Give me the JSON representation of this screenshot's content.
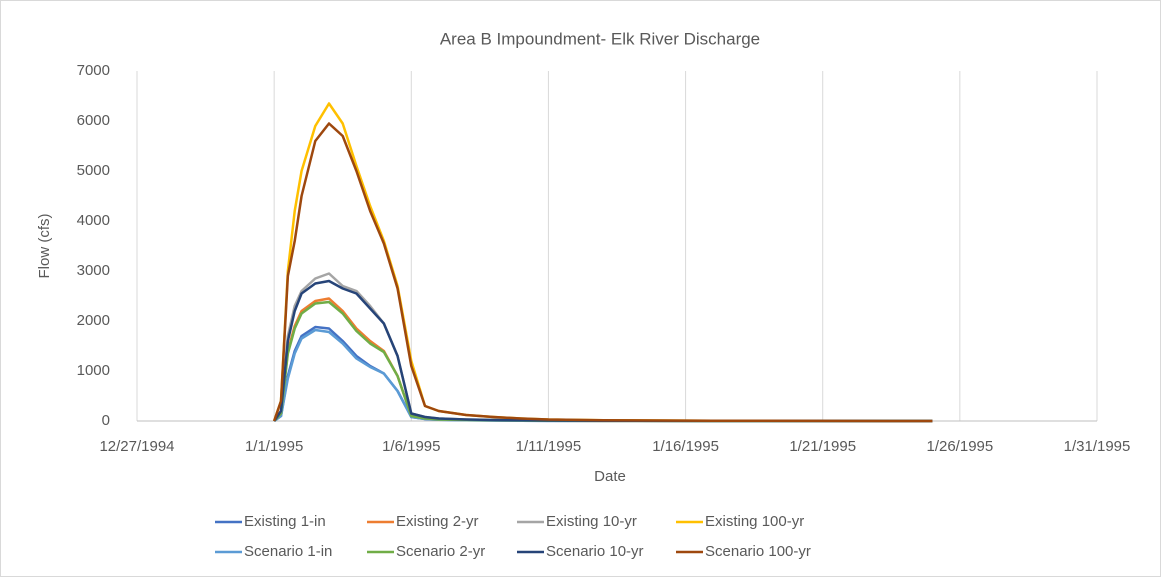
{
  "chart_data": {
    "type": "line",
    "title": "Area B Impoundment- Elk River Discharge",
    "x_label": "Date",
    "y_label": "Flow (cfs)",
    "x": [
      "1995-01-01T00:00",
      "1995-01-01T06:00",
      "1995-01-01T12:00",
      "1995-01-01T18:00",
      "1995-01-02T00:00",
      "1995-01-02T12:00",
      "1995-01-03T00:00",
      "1995-01-03T12:00",
      "1995-01-04T00:00",
      "1995-01-04T12:00",
      "1995-01-05T00:00",
      "1995-01-05T12:00",
      "1995-01-06T00:00",
      "1995-01-06T12:00",
      "1995-01-07T00:00",
      "1995-01-08T00:00",
      "1995-01-09T00:00",
      "1995-01-10T00:00",
      "1995-01-11T00:00",
      "1995-01-13T00:00",
      "1995-01-17T00:00",
      "1995-01-25T00:00"
    ],
    "series": [
      {
        "name": "Existing 1-in",
        "color": "#4472c4",
        "values": [
          0,
          100,
          900,
          1400,
          1700,
          1880,
          1850,
          1600,
          1300,
          1100,
          950,
          600,
          80,
          40,
          25,
          15,
          10,
          5,
          3,
          2,
          1,
          0
        ]
      },
      {
        "name": "Existing 2-yr",
        "color": "#ed7d31",
        "values": [
          0,
          150,
          1400,
          1900,
          2200,
          2400,
          2450,
          2200,
          1850,
          1600,
          1400,
          900,
          100,
          50,
          30,
          20,
          15,
          10,
          5,
          3,
          1,
          0
        ]
      },
      {
        "name": "Existing 10-yr",
        "color": "#a5a5a5",
        "values": [
          0,
          200,
          1700,
          2300,
          2600,
          2850,
          2950,
          2700,
          2600,
          2300,
          1950,
          1300,
          150,
          80,
          50,
          30,
          20,
          15,
          10,
          5,
          2,
          0
        ]
      },
      {
        "name": "Existing 100-yr",
        "color": "#ffc000",
        "values": [
          0,
          400,
          3000,
          4200,
          5000,
          5900,
          6350,
          5950,
          5100,
          4300,
          3600,
          2700,
          1200,
          300,
          200,
          120,
          80,
          50,
          30,
          15,
          5,
          0
        ]
      },
      {
        "name": "Scenario 1-in",
        "color": "#5b9bd5",
        "values": [
          0,
          100,
          850,
          1350,
          1650,
          1820,
          1780,
          1550,
          1250,
          1080,
          950,
          600,
          80,
          40,
          25,
          15,
          10,
          5,
          3,
          2,
          1,
          0
        ]
      },
      {
        "name": "Scenario 2-yr",
        "color": "#70ad47",
        "values": [
          0,
          150,
          1350,
          1850,
          2150,
          2350,
          2380,
          2150,
          1800,
          1550,
          1380,
          900,
          100,
          50,
          30,
          20,
          15,
          10,
          5,
          3,
          1,
          0
        ]
      },
      {
        "name": "Scenario 10-yr",
        "color": "#264478",
        "values": [
          0,
          200,
          1600,
          2200,
          2550,
          2750,
          2800,
          2650,
          2550,
          2250,
          1950,
          1300,
          150,
          80,
          50,
          30,
          20,
          15,
          10,
          5,
          2,
          0
        ]
      },
      {
        "name": "Scenario 100-yr",
        "color": "#9e480e",
        "values": [
          0,
          400,
          2900,
          3600,
          4500,
          5600,
          5950,
          5700,
          5000,
          4200,
          3550,
          2650,
          1100,
          300,
          200,
          120,
          80,
          50,
          30,
          15,
          5,
          0
        ]
      }
    ],
    "xlim": [
      "1994-12-27T00:00",
      "1995-01-31T00:00"
    ],
    "xticks": [
      {
        "value": "1994-12-27T00:00",
        "label": "12/27/1994"
      },
      {
        "value": "1995-01-01T00:00",
        "label": "1/1/1995"
      },
      {
        "value": "1995-01-06T00:00",
        "label": "1/6/1995"
      },
      {
        "value": "1995-01-11T00:00",
        "label": "1/11/1995"
      },
      {
        "value": "1995-01-16T00:00",
        "label": "1/16/1995"
      },
      {
        "value": "1995-01-21T00:00",
        "label": "1/21/1995"
      },
      {
        "value": "1995-01-26T00:00",
        "label": "1/26/1995"
      },
      {
        "value": "1995-01-31T00:00",
        "label": "1/31/1995"
      }
    ],
    "ylim": [
      0,
      7000
    ],
    "yticks": [
      0,
      1000,
      2000,
      3000,
      4000,
      5000,
      6000,
      7000
    ],
    "grid": "x",
    "legend": "bottom"
  }
}
